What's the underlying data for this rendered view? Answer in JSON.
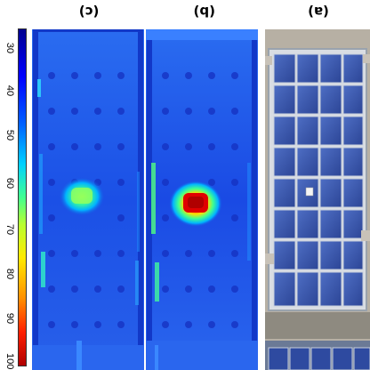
{
  "labels": {
    "c": "(c)",
    "b": "(b)",
    "a": "(a)"
  },
  "colorbar": {
    "ticks": [
      "30",
      "40",
      "50",
      "60",
      "70",
      "80",
      "90",
      "100"
    ],
    "colors": {
      "low": "#00008f",
      "mid_low": "#0060ff",
      "mid": "#40ff90",
      "mid_high": "#ffea00",
      "high": "#b00000"
    }
  },
  "images": {
    "thermal_c": "thermal-image-hotspot-moderate",
    "thermal_b": "thermal-image-hotspot-severe",
    "photo_a": "solar-panel-photo"
  }
}
